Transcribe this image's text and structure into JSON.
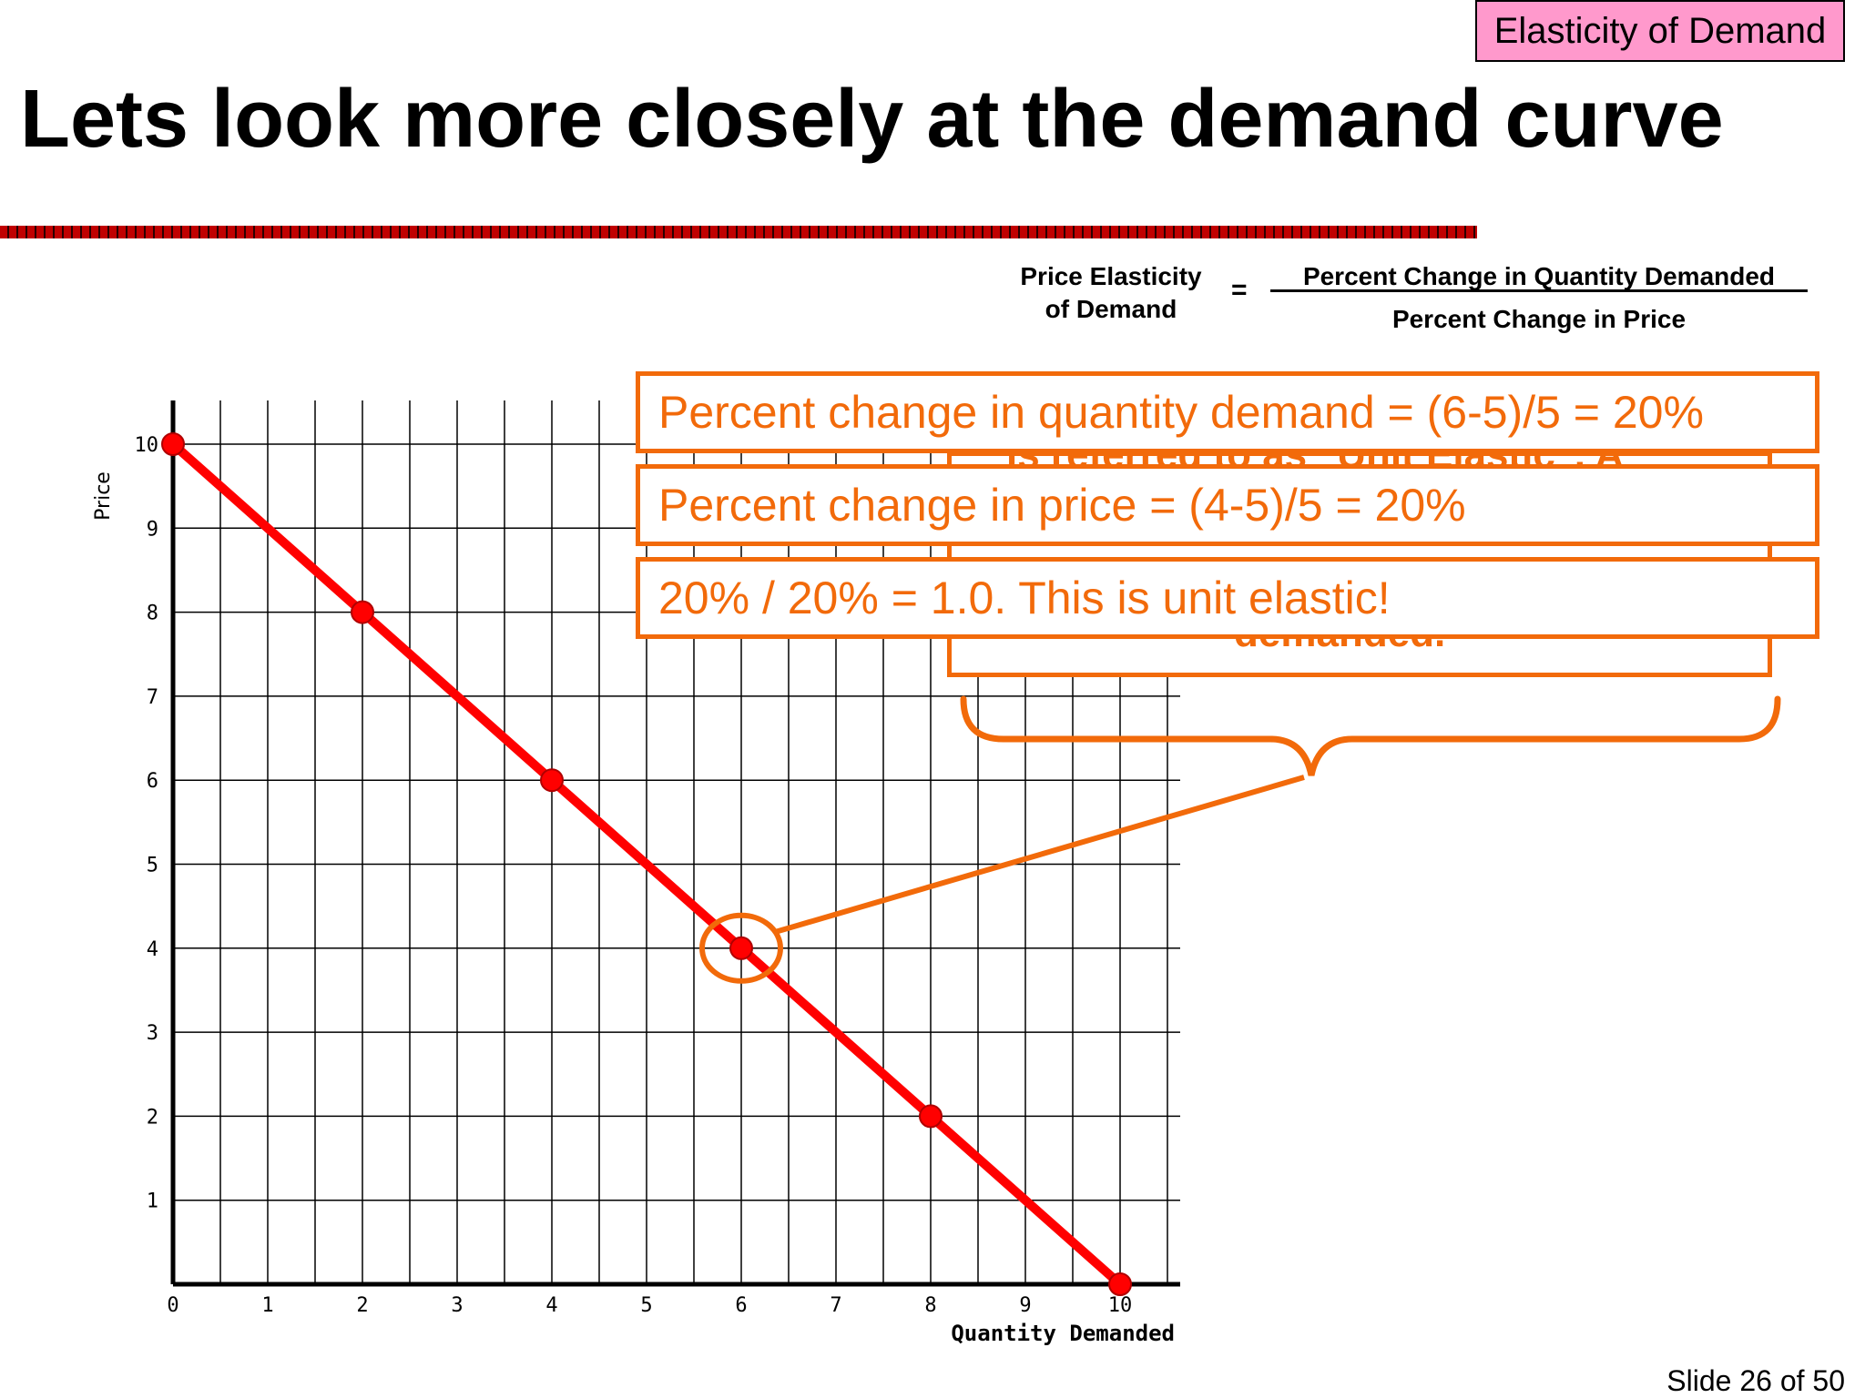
{
  "header": {
    "tag": "Elasticity of Demand",
    "title": "Lets look more closely at the demand curve"
  },
  "formula": {
    "lhs_line1": "Price Elasticity",
    "lhs_line2": "of Demand",
    "equals": "=",
    "numerator": "Percent Change in Quantity Demanded",
    "denominator": "Percent Change in Price"
  },
  "callouts": [
    "Percent change in quantity demand = (6-5)/5 = 20%",
    "Percent change in price = (4-5)/5 = 20%",
    "20% / 20% = 1.0.  This is unit elastic!"
  ],
  "hidden_text": {
    "line1": "is referred to as \"Unit Elastic\".  A",
    "line2": "demanded."
  },
  "footer": {
    "slide": "Slide 26 of 50"
  },
  "colors": {
    "curve": "#ff0000",
    "accent": "#f26a0a",
    "tag_bg": "#ff99cc"
  },
  "chart_data": {
    "type": "line",
    "xlabel": "Quantity Demanded",
    "ylabel": "Price",
    "xlim": [
      0,
      10
    ],
    "ylim": [
      0,
      10
    ],
    "x_ticks": [
      "0",
      "1",
      "2",
      "3",
      "4",
      "5",
      "6",
      "7",
      "8",
      "9",
      "10"
    ],
    "y_ticks": [
      "1",
      "2",
      "3",
      "4",
      "5",
      "6",
      "7",
      "8",
      "9",
      "10"
    ],
    "grid": true,
    "series": [
      {
        "points": [
          [
            0,
            10
          ],
          [
            2,
            8
          ],
          [
            4,
            6
          ],
          [
            6,
            4
          ],
          [
            8,
            2
          ],
          [
            10,
            0
          ]
        ]
      }
    ],
    "highlight_point": [
      6,
      4
    ]
  }
}
